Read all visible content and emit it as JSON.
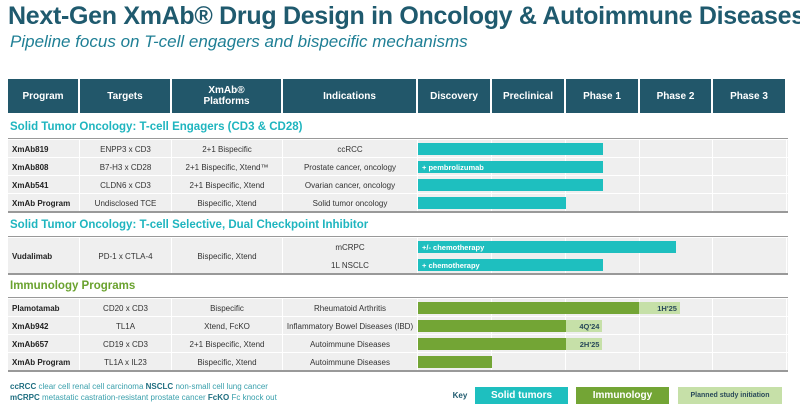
{
  "title": "Next-Gen XmAb® Drug Design in Oncology & Autoimmune Diseases",
  "subtitle": "Pipeline focus on T-cell engagers and bispecific mechanisms",
  "columns": [
    "Program",
    "Targets",
    "XmAb®",
    "Platforms",
    "Indications",
    "Discovery",
    "Preclinical",
    "Phase 1",
    "Phase 2",
    "Phase 3"
  ],
  "colors": {
    "header": "#22576a",
    "solid_tumors": "#1ebfbf",
    "immunology": "#73a535",
    "planned": "#c6e0a8"
  },
  "sections": [
    {
      "title": "Solid Tumor Oncology: T-cell Engagers (CD3 & CD28)",
      "rows": [
        {
          "program": "XmAb819",
          "targets": "ENPP3 x CD3",
          "platform": "2+1 Bispecific",
          "indication": "ccRCC",
          "progress_phases": 2.5,
          "bar_label": ""
        },
        {
          "program": "XmAb808",
          "targets": "B7-H3 x CD28",
          "platform": "2+1 Bispecific, Xtend™",
          "indication": "Prostate cancer, oncology",
          "progress_phases": 2.5,
          "bar_label": "+ pembrolizumab"
        },
        {
          "program": "XmAb541",
          "targets": "CLDN6 x CD3",
          "platform": "2+1 Bispecific, Xtend",
          "indication": "Ovarian cancer, oncology",
          "progress_phases": 2.5,
          "bar_label": ""
        },
        {
          "program": "XmAb Program",
          "targets": "Undisclosed TCE",
          "platform": "Bispecific, Xtend",
          "indication": "Solid tumor oncology",
          "progress_phases": 2.0,
          "bar_label": ""
        }
      ]
    },
    {
      "title": "Solid Tumor Oncology: T-cell Selective, Dual Checkpoint Inhibitor",
      "rows": [
        {
          "program": "Vudalimab",
          "targets": "PD-1 x CTLA-4",
          "platform": "Bispecific, Xtend",
          "indications": [
            {
              "indication": "mCRPC",
              "progress_phases": 3.5,
              "bar_label": "+/- chemotherapy"
            },
            {
              "indication": "1L NSCLC",
              "progress_phases": 2.5,
              "bar_label": "+ chemotherapy"
            }
          ]
        }
      ]
    },
    {
      "title": "Immunology Programs",
      "rows": [
        {
          "program": "Plamotamab",
          "targets": "CD20 x CD3",
          "platform": "Bispecific",
          "indication": "Rheumatoid Arthritis",
          "progress_phases": 3.0,
          "planned_to": 3.55,
          "planned_label": "1H'25"
        },
        {
          "program": "XmAb942",
          "targets": "TL1A",
          "platform": "Xtend, FcKO",
          "indication": "Inflammatory Bowel Diseases (IBD)",
          "progress_phases": 2.0,
          "planned_to": 2.5,
          "planned_label": "4Q'24"
        },
        {
          "program": "XmAb657",
          "targets": "CD19 x CD3",
          "platform": "2+1 Bispecific, Xtend",
          "indication": "Autoimmune Diseases",
          "progress_phases": 2.0,
          "planned_to": 2.5,
          "planned_label": "2H'25"
        },
        {
          "program": "XmAb Program",
          "targets": "TL1A x IL23",
          "platform": "Bispecific, Xtend",
          "indication": "Autoimmune Diseases",
          "progress_phases": 1.0,
          "planned_label": ""
        }
      ]
    }
  ],
  "footnotes": [
    [
      {
        "abbr": "ccRCC",
        "text": "clear cell renal cell carcinoma"
      },
      {
        "abbr": "NSCLC",
        "text": "non-small cell lung cancer"
      }
    ],
    [
      {
        "abbr": "mCRPC",
        "text": "metastatic castration-resistant prostate cancer"
      },
      {
        "abbr": "FcKO",
        "text": "Fc knock out"
      }
    ]
  ],
  "key": {
    "label": "Key",
    "solid": "Solid tumors",
    "immuno": "Immunology",
    "planned": "Planned study initiation"
  }
}
